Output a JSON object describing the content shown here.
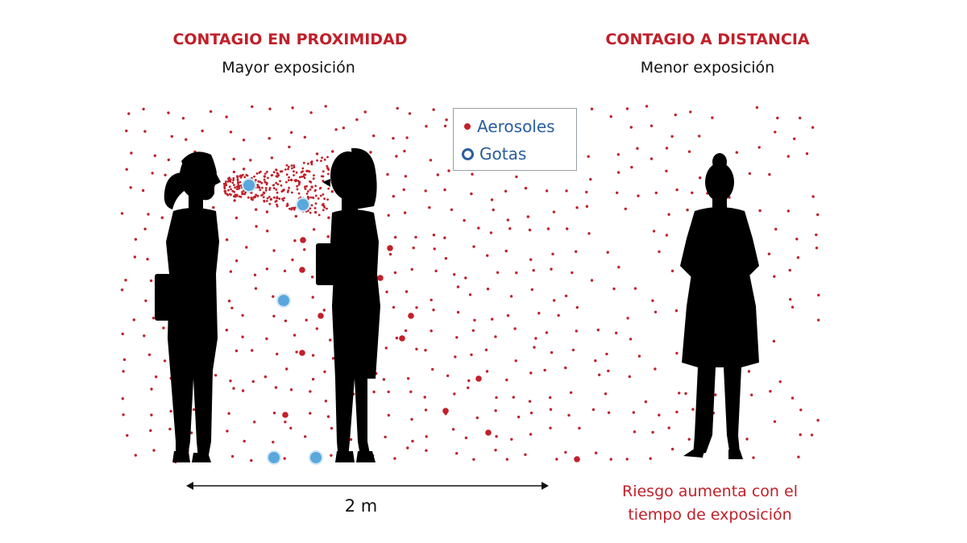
{
  "left_panel": {
    "title": "CONTAGIO EN PROXIMIDAD",
    "subtitle": "Mayor exposición"
  },
  "right_panel": {
    "title": "CONTAGIO A DISTANCIA",
    "subtitle": "Menor exposición"
  },
  "legend": {
    "aerosols": "Aerosoles",
    "droplets": "Gotas"
  },
  "distance": "2 m",
  "risk_note": {
    "line1": "Riesgo aumenta con el",
    "line2": "tiempo de exposición"
  },
  "colors": {
    "aerosol": "#c0202a",
    "droplet": "#5aa7dc",
    "silhouette": "#000000",
    "title": "#c0202a"
  }
}
